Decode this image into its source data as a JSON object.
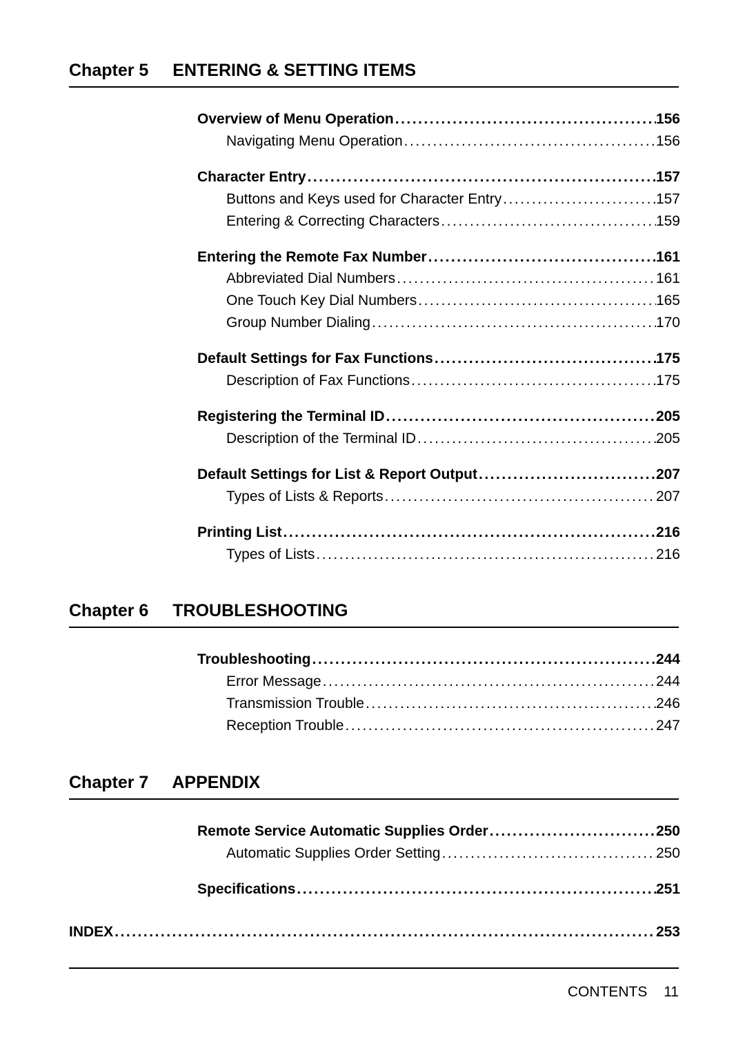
{
  "chapters": [
    {
      "label": "Chapter 5",
      "title": "ENTERING & SETTING ITEMS",
      "groups": [
        [
          {
            "text": "Overview of Menu Operation",
            "page": "156",
            "level": 0
          },
          {
            "text": "Navigating Menu Operation",
            "page": "156",
            "level": 1
          }
        ],
        [
          {
            "text": "Character Entry",
            "page": "157",
            "level": 0
          },
          {
            "text": "Buttons and Keys used for Character Entry",
            "page": "157",
            "level": 1
          },
          {
            "text": "Entering & Correcting Characters",
            "page": "159",
            "level": 1
          }
        ],
        [
          {
            "text": "Entering the Remote Fax Number",
            "page": "161",
            "level": 0
          },
          {
            "text": "Abbreviated Dial Numbers",
            "page": "161",
            "level": 1
          },
          {
            "text": "One Touch Key Dial Numbers",
            "page": "165",
            "level": 1
          },
          {
            "text": "Group Number Dialing",
            "page": "170",
            "level": 1
          }
        ],
        [
          {
            "text": "Default Settings for Fax Functions",
            "page": "175",
            "level": 0
          },
          {
            "text": "Description of Fax Functions",
            "page": "175",
            "level": 1
          }
        ],
        [
          {
            "text": "Registering the Terminal ID",
            "page": "205",
            "level": 0
          },
          {
            "text": "Description of the Terminal ID",
            "page": "205",
            "level": 1
          }
        ],
        [
          {
            "text": "Default Settings for List & Report Output",
            "page": "207",
            "level": 0
          },
          {
            "text": "Types of Lists & Reports",
            "page": "207",
            "level": 1
          }
        ],
        [
          {
            "text": "Printing List",
            "page": "216",
            "level": 0
          },
          {
            "text": "Types of Lists",
            "page": "216",
            "level": 1
          }
        ]
      ]
    },
    {
      "label": "Chapter 6",
      "title": "TROUBLESHOOTING",
      "groups": [
        [
          {
            "text": "Troubleshooting",
            "page": "244",
            "level": 0
          },
          {
            "text": "Error Message",
            "page": "244",
            "level": 1
          },
          {
            "text": "Transmission Trouble",
            "page": "246",
            "level": 1
          },
          {
            "text": "Reception Trouble",
            "page": "247",
            "level": 1
          }
        ]
      ]
    },
    {
      "label": "Chapter 7",
      "title": "APPENDIX",
      "groups": [
        [
          {
            "text": "Remote Service Automatic Supplies Order",
            "page": "250",
            "level": 0
          },
          {
            "text": "Automatic Supplies Order Setting",
            "page": "250",
            "level": 1
          }
        ],
        [
          {
            "text": "Specifications",
            "page": "251",
            "level": 0
          }
        ]
      ]
    }
  ],
  "index": {
    "text": "INDEX",
    "page": "253"
  },
  "footer": {
    "contents": "CONTENTS",
    "page": "11"
  }
}
